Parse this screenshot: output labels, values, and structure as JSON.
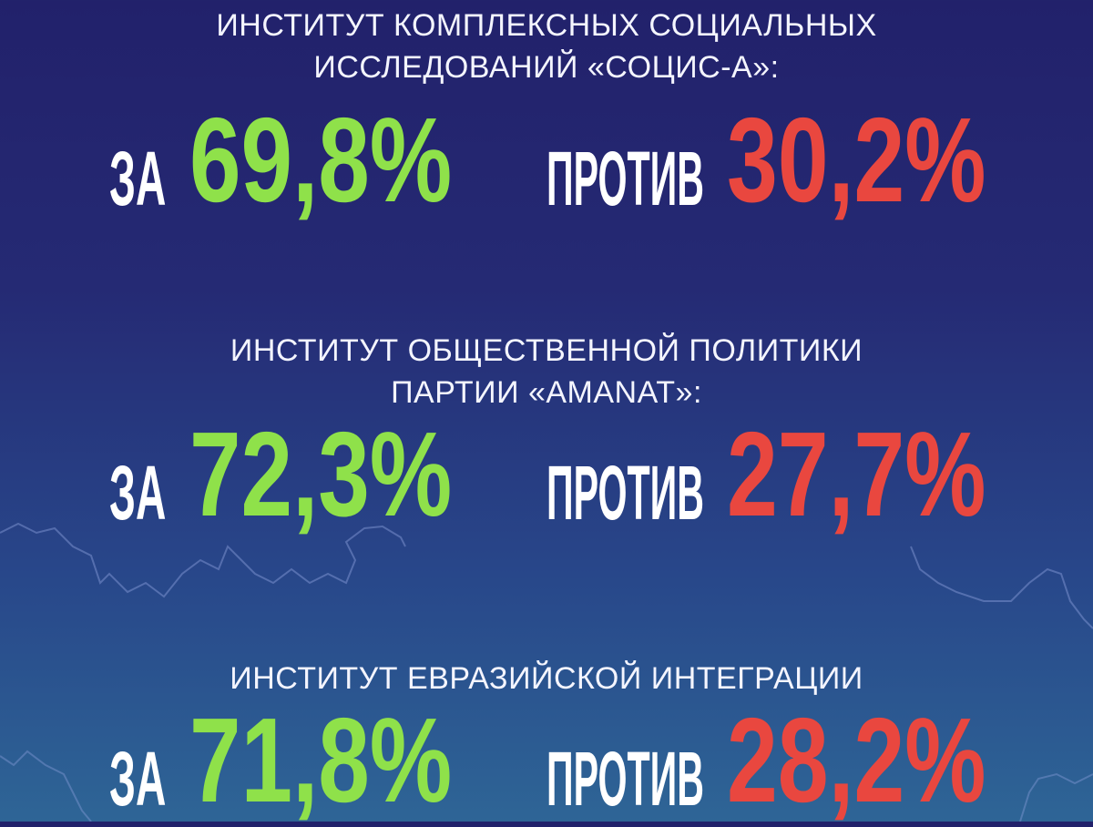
{
  "colors": {
    "for": "#8fe14a",
    "against": "#e9473f",
    "background_top": "#22216b",
    "background_bottom": "#2e6596"
  },
  "labels": {
    "for": "ЗА",
    "against": "ПРОТИВ"
  },
  "polls": [
    {
      "institute_line1": "ИНСТИТУТ КОМПЛЕКСНЫХ СОЦИАЛЬНЫХ",
      "institute_line2": "ИССЛЕДОВАНИЙ «СОЦИС-А»:",
      "for": "69,8%",
      "against": "30,2%"
    },
    {
      "institute_line1": "ИНСТИТУТ ОБЩЕСТВЕННОЙ ПОЛИТИКИ",
      "institute_line2": "ПАРТИИ «AMANAT»:",
      "for": "72,3%",
      "against": "27,7%"
    },
    {
      "institute_line1": "ИНСТИТУТ ЕВРАЗИЙСКОЙ ИНТЕГРАЦИИ",
      "for": "71,8%",
      "against": "28,2%"
    }
  ]
}
